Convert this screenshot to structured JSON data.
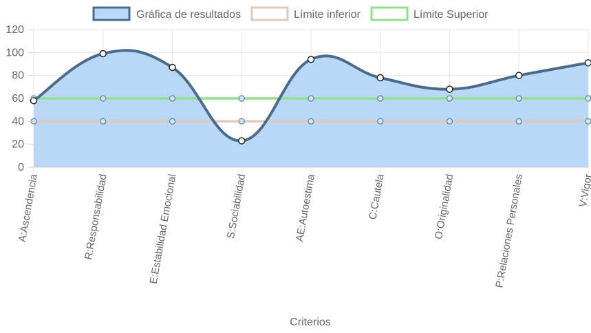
{
  "chart_data": {
    "type": "line",
    "categories": [
      "A:Ascendencia",
      "R:Responsabilidad",
      "E:Estabilidad Emocional",
      "S:Sociabilidad",
      "AE:Autoestima",
      "C:Cautela",
      "O:Originalidad",
      "P:Relaciones Personales",
      "V:Vigor"
    ],
    "series": [
      {
        "name": "Gráfica de resultados",
        "values": [
          58,
          99,
          87,
          23,
          94,
          78,
          68,
          80,
          91
        ],
        "color": "#4a6b8a",
        "fill": "#b9d8f5",
        "filled": true,
        "smooth": true
      },
      {
        "name": "Límite inferior",
        "values": [
          40,
          40,
          40,
          40,
          40,
          40,
          40,
          40,
          40
        ],
        "color": "#e2c7bc",
        "filled": false,
        "smooth": false
      },
      {
        "name": "Límite Superior",
        "values": [
          60,
          60,
          60,
          60,
          60,
          60,
          60,
          60,
          60
        ],
        "color": "#92e08e",
        "filled": false,
        "smooth": false
      }
    ],
    "xlabel": "Criterios",
    "ylabel": "",
    "ylim": [
      0,
      120
    ],
    "yticks": [
      "0",
      "20",
      "40",
      "60",
      "80",
      "100",
      "120"
    ],
    "grid": true,
    "legend": "top-center"
  }
}
